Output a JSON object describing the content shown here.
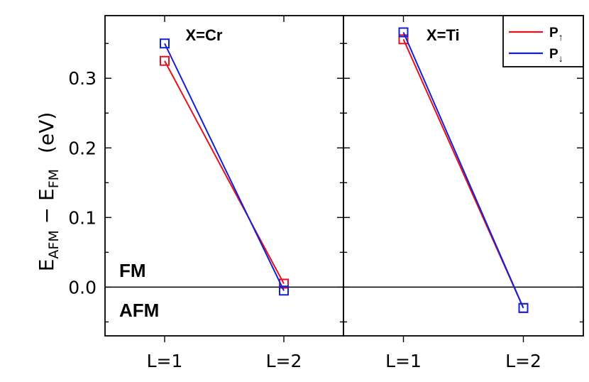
{
  "chart_data": {
    "type": "line",
    "ylabel": {
      "e1": "E",
      "s1": "AFM",
      "minus": " − ",
      "e2": "E",
      "s2": "FM",
      "unit": "(eV)"
    },
    "ylim": [
      -0.07,
      0.39
    ],
    "yticks": [
      0.0,
      0.1,
      0.2,
      0.3
    ],
    "ytick_labels": [
      "0.0",
      "0.1",
      "0.2",
      "0.3"
    ],
    "categories": [
      "L=1",
      "L=2"
    ],
    "reference_line": 0.0,
    "region_labels": {
      "above": "FM",
      "below": "AFM"
    },
    "legend": {
      "placement": "top-right",
      "entries": [
        {
          "base": "P",
          "sub": "↑",
          "color": "#e8101a"
        },
        {
          "base": "P",
          "sub": "↓",
          "color": "#1020d8"
        }
      ]
    },
    "panels": [
      {
        "title": "X=Cr",
        "series": [
          {
            "legend_index": 0,
            "color": "#e8101a",
            "values": [
              0.325,
              0.005
            ]
          },
          {
            "legend_index": 1,
            "color": "#1020d8",
            "values": [
              0.35,
              -0.005
            ]
          }
        ]
      },
      {
        "title": "X=Ti",
        "series": [
          {
            "legend_index": 0,
            "color": "#e8101a",
            "values": [
              0.356,
              -0.03
            ]
          },
          {
            "legend_index": 1,
            "color": "#1020d8",
            "values": [
              0.366,
              -0.03
            ]
          }
        ]
      }
    ]
  }
}
